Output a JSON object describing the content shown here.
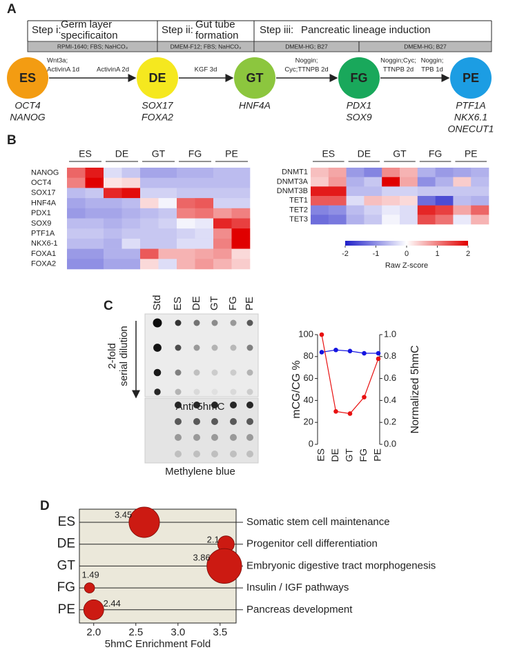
{
  "panel_labels": [
    "A",
    "B",
    "C",
    "D"
  ],
  "diagram": {
    "steps": [
      {
        "title": [
          "Step i:",
          "Germ layer",
          "specificaiton"
        ],
        "media": [
          "RPMI-1640; FBS; NaHCO₃"
        ]
      },
      {
        "title": [
          "Step ii:",
          "Gut tube",
          "formation"
        ],
        "media": [
          "DMEM-F12; FBS; NaHCO₃"
        ]
      },
      {
        "title": [
          "Step iii:",
          "Pancreatic lineage induction"
        ],
        "media": [
          "DMEM-HG; B27",
          "DMEM-HG; B27"
        ]
      }
    ],
    "stages": [
      {
        "label": "ES",
        "color": "#f39c12",
        "markers": [
          "OCT4",
          "NANOG"
        ]
      },
      {
        "label": "DE",
        "color": "#f5e81f",
        "markers": [
          "SOX17",
          "FOXA2"
        ]
      },
      {
        "label": "GT",
        "color": "#8cc63e",
        "markers": [
          "HNF4A"
        ]
      },
      {
        "label": "FG",
        "color": "#19a85b",
        "markers": [
          "PDX1",
          "SOX9"
        ]
      },
      {
        "label": "PE",
        "color": "#1c9de3",
        "markers": [
          "PTF1A",
          "NKX6.1",
          "ONECUT1"
        ]
      }
    ],
    "conditions": [
      [
        "Wnt3a;",
        "ActivinA 1d",
        "ActivinA 2d"
      ],
      [
        "KGF 3d"
      ],
      [
        "Noggin;",
        "Cyc;TTNPB 2d"
      ],
      [
        "Noggin;Cyc;",
        "TTNPB 2d"
      ],
      [
        "Noggin;",
        "TPB 1d"
      ]
    ]
  },
  "blot": {
    "lanes": [
      "Std",
      "ES",
      "DE",
      "GT",
      "FG",
      "PE"
    ],
    "direction": [
      "2-fold",
      "serial dilution"
    ],
    "captions": [
      "Anti-5hmC",
      "Methylene blue"
    ]
  },
  "chart_data": [
    {
      "type": "heatmap",
      "groups": [
        "ES",
        "DE",
        "GT",
        "FG",
        "PE"
      ],
      "rows": [
        "NANOG",
        "OCT4",
        "SOX17",
        "HNF4A",
        "PDX1",
        "SOX9",
        "PTF1A",
        "NKX6-1",
        "FOXA1",
        "FOXA2"
      ],
      "values": [
        [
          1.2,
          1.8,
          -0.3,
          -0.5,
          -0.8,
          -0.8,
          -0.7,
          -0.7,
          -0.6,
          -0.6
        ],
        [
          1.0,
          2.0,
          0.2,
          0.3,
          -0.6,
          -0.6,
          -0.6,
          -0.6,
          -0.6,
          -0.6
        ],
        [
          -0.6,
          -0.5,
          1.7,
          1.9,
          -0.4,
          -0.4,
          -0.5,
          -0.5,
          -0.5,
          -0.5
        ],
        [
          -0.8,
          -0.7,
          -0.7,
          -0.6,
          0.3,
          -0.1,
          1.2,
          1.3,
          -0.4,
          -0.4
        ],
        [
          -0.9,
          -0.8,
          -0.8,
          -0.7,
          -0.6,
          -0.5,
          1.0,
          1.1,
          0.8,
          1.0
        ],
        [
          -0.6,
          -0.6,
          -0.7,
          -0.6,
          -0.5,
          -0.4,
          -0.1,
          -0.2,
          1.7,
          1.5
        ],
        [
          -0.5,
          -0.5,
          -0.6,
          -0.5,
          -0.5,
          -0.5,
          -0.4,
          -0.3,
          0.9,
          2.0
        ],
        [
          -0.6,
          -0.6,
          -0.7,
          -0.3,
          -0.5,
          -0.5,
          -0.3,
          -0.3,
          1.0,
          2.0
        ],
        [
          -0.9,
          -0.9,
          -0.7,
          -0.7,
          1.3,
          0.6,
          0.6,
          0.7,
          0.8,
          0.3
        ],
        [
          -1.0,
          -1.0,
          -0.8,
          -0.8,
          0.3,
          -0.3,
          0.6,
          0.8,
          0.6,
          0.4
        ]
      ]
    },
    {
      "type": "heatmap",
      "groups": [
        "ES",
        "DE",
        "GT",
        "FG",
        "PE"
      ],
      "rows": [
        "DNMT1",
        "DNMT3A",
        "DNMT3B",
        "TET1",
        "TET2",
        "TET3"
      ],
      "values": [
        [
          0.5,
          0.7,
          -0.9,
          -1.1,
          0.9,
          0.6,
          -0.7,
          -0.9,
          -0.8,
          -0.7
        ],
        [
          0.4,
          0.8,
          -0.7,
          -0.5,
          2.0,
          0.7,
          -1.0,
          -0.7,
          0.4,
          -0.6
        ],
        [
          1.8,
          1.8,
          -0.6,
          -0.6,
          -0.4,
          -0.4,
          -0.5,
          -0.5,
          -0.5,
          -0.5
        ],
        [
          1.3,
          1.3,
          -0.3,
          0.5,
          0.4,
          0.3,
          -1.3,
          -1.6,
          -0.6,
          -0.7
        ],
        [
          -1.1,
          -1.0,
          -0.6,
          -0.4,
          -0.2,
          -0.3,
          1.7,
          1.5,
          0.7,
          1.2
        ],
        [
          -1.3,
          -1.2,
          -0.7,
          -0.5,
          -0.1,
          -0.3,
          1.4,
          1.1,
          -0.2,
          0.6
        ]
      ],
      "colorbar": {
        "lim": [
          -2,
          2
        ],
        "ticks": [
          -2,
          -1,
          0,
          1,
          2
        ],
        "label": "Raw Z-score",
        "colors": [
          "#1f1fc8",
          "#ffffff",
          "#e00000"
        ]
      }
    },
    {
      "type": "line",
      "categories": [
        "ES",
        "DE",
        "GT",
        "FG",
        "PE"
      ],
      "ylim": [
        0,
        100
      ],
      "yticks": [
        0,
        20,
        40,
        60,
        80,
        100
      ],
      "ylabel": "mCG/CG %",
      "y2lim": [
        0,
        1
      ],
      "y2ticks": [
        {
          "value": 0,
          "label": "0.0"
        },
        {
          "value": 0.2,
          "label": "0.2"
        },
        {
          "value": 0.4,
          "label": "0.4"
        },
        {
          "value": 0.6,
          "label": "0.6"
        },
        {
          "value": 0.8,
          "label": "0.8"
        },
        {
          "value": 1,
          "label": "1.0"
        }
      ],
      "y2label": "Normalized 5hmC",
      "series": [
        {
          "color": "#1515e0",
          "values": [
            84,
            86,
            85,
            83,
            83
          ]
        },
        {
          "color": "#e81010",
          "axis": "y2",
          "values": [
            1.0,
            0.3,
            0.28,
            0.43,
            0.78
          ]
        }
      ]
    },
    {
      "type": "bubble",
      "categories": [
        "ES",
        "DE",
        "GT",
        "FG",
        "PE"
      ],
      "values": [
        2.6,
        3.57,
        3.55,
        1.95,
        2.0
      ],
      "sizes": [
        3.45,
        2.1,
        3.86,
        1.49,
        2.44
      ],
      "terms": [
        "Somatic stem cell maintenance",
        "Progenitor cell differentiation",
        "Embryonic digestive tract morphogenesis",
        "Insulin / IGF pathways",
        "Pancreas development"
      ],
      "xlim": [
        1.83,
        3.69
      ],
      "xticks": [
        {
          "value": 2,
          "label": "2.0"
        },
        2.5,
        {
          "value": 3,
          "label": "3.0"
        },
        3.5
      ],
      "xlabel": "5hmC Enrichment Fold",
      "color": "#cc1a12",
      "background": "#ebe8da"
    }
  ]
}
